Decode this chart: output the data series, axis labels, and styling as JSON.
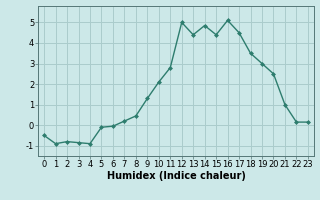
{
  "x": [
    0,
    1,
    2,
    3,
    4,
    5,
    6,
    7,
    8,
    9,
    10,
    11,
    12,
    13,
    14,
    15,
    16,
    17,
    18,
    19,
    20,
    21,
    22,
    23
  ],
  "y": [
    -0.5,
    -0.9,
    -0.8,
    -0.85,
    -0.9,
    -0.1,
    -0.05,
    0.2,
    0.45,
    1.3,
    2.1,
    2.8,
    5.0,
    4.4,
    4.85,
    4.4,
    5.1,
    4.5,
    3.5,
    3.0,
    2.5,
    1.0,
    0.15,
    0.15
  ],
  "line_color": "#2e7d6e",
  "marker": "D",
  "marker_size": 2.0,
  "linewidth": 1.0,
  "bg_color": "#cce8e8",
  "grid_color": "#aacccc",
  "xlabel": "Humidex (Indice chaleur)",
  "xlabel_fontsize": 7,
  "tick_fontsize": 6,
  "ylim": [
    -1.5,
    5.8
  ],
  "xlim": [
    -0.5,
    23.5
  ],
  "yticks": [
    -1,
    0,
    1,
    2,
    3,
    4,
    5
  ],
  "xticks": [
    0,
    1,
    2,
    3,
    4,
    5,
    6,
    7,
    8,
    9,
    10,
    11,
    12,
    13,
    14,
    15,
    16,
    17,
    18,
    19,
    20,
    21,
    22,
    23
  ]
}
